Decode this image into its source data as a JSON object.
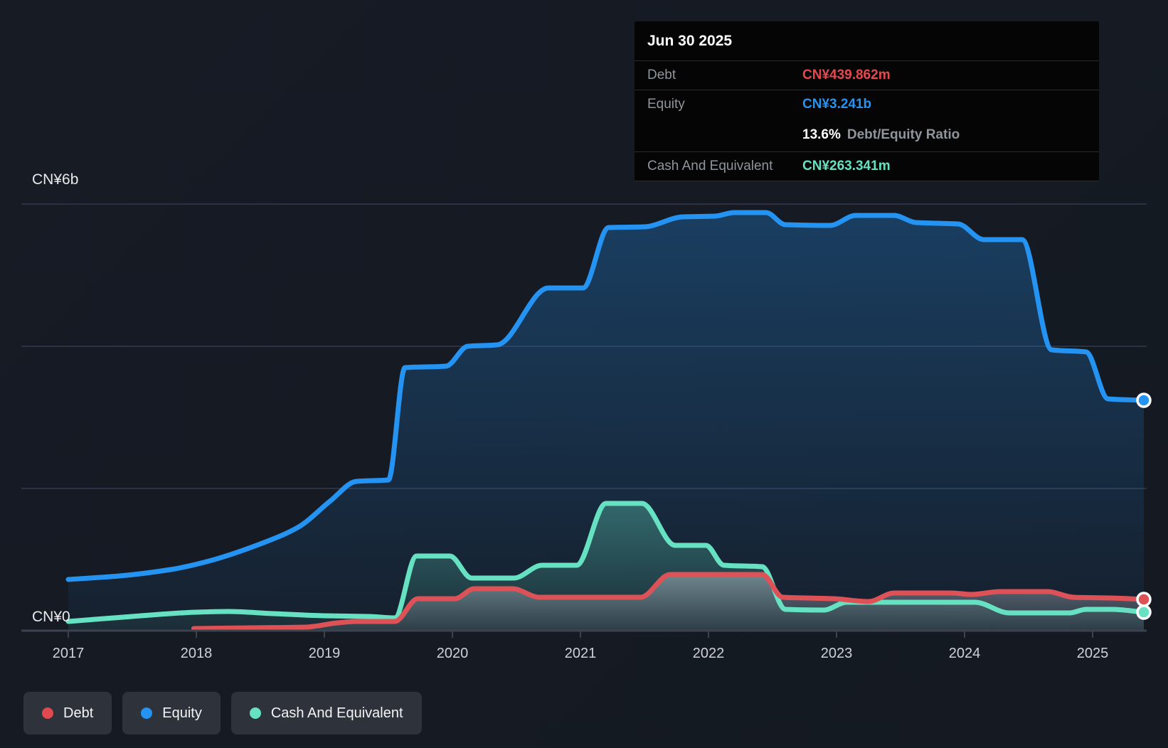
{
  "y_axis": {
    "top_label": "CN¥6b",
    "zero_label": "CN¥0"
  },
  "x_axis": {
    "years": [
      "2017",
      "2018",
      "2019",
      "2020",
      "2021",
      "2022",
      "2023",
      "2024",
      "2025"
    ]
  },
  "tooltip": {
    "title": "Jun 30 2025",
    "rows": [
      {
        "label": "Debt",
        "value": "CN¥439.862m",
        "color": "#e5494e"
      },
      {
        "label": "Equity",
        "value": "CN¥3.241b",
        "color": "#2493f2"
      },
      {
        "label": "",
        "value": "13.6%",
        "suffix": "Debt/Equity Ratio",
        "color": "#ffffff"
      },
      {
        "label": "Cash And Equivalent",
        "value": "CN¥263.341m",
        "color": "#66e2c3"
      }
    ]
  },
  "legend": {
    "items": [
      {
        "label": "Debt",
        "color": "#e0494f"
      },
      {
        "label": "Equity",
        "color": "#2493f2"
      },
      {
        "label": "Cash And Equivalent",
        "color": "#66e2c3"
      }
    ]
  },
  "chart_data": {
    "type": "area",
    "title": "Debt, Equity and Cash history",
    "currency": "CN¥",
    "y_unit": "billions",
    "ylim": [
      0,
      6
    ],
    "gridline_values_b": [
      6,
      4,
      2
    ],
    "x_range": [
      2017,
      2025.4
    ],
    "x_tick_years": [
      2017,
      2018,
      2019,
      2020,
      2021,
      2022,
      2023,
      2024,
      2025
    ],
    "legend_position": "bottom-left",
    "series": [
      {
        "name": "Equity",
        "color": "#2493f2",
        "points": [
          [
            2017.0,
            0.72
          ],
          [
            2017.4,
            0.77
          ],
          [
            2017.8,
            0.86
          ],
          [
            2018.1,
            0.98
          ],
          [
            2018.5,
            1.22
          ],
          [
            2018.8,
            1.46
          ],
          [
            2019.05,
            1.83
          ],
          [
            2019.25,
            2.1
          ],
          [
            2019.5,
            2.12
          ],
          [
            2019.63,
            3.7
          ],
          [
            2019.95,
            3.72
          ],
          [
            2020.12,
            4.0
          ],
          [
            2020.35,
            4.02
          ],
          [
            2020.75,
            4.82
          ],
          [
            2021.02,
            4.82
          ],
          [
            2021.22,
            5.67
          ],
          [
            2021.5,
            5.68
          ],
          [
            2021.8,
            5.82
          ],
          [
            2022.05,
            5.83
          ],
          [
            2022.2,
            5.88
          ],
          [
            2022.45,
            5.88
          ],
          [
            2022.6,
            5.71
          ],
          [
            2022.95,
            5.7
          ],
          [
            2023.15,
            5.84
          ],
          [
            2023.45,
            5.84
          ],
          [
            2023.62,
            5.74
          ],
          [
            2023.95,
            5.72
          ],
          [
            2024.15,
            5.5
          ],
          [
            2024.45,
            5.5
          ],
          [
            2024.68,
            3.95
          ],
          [
            2024.95,
            3.92
          ],
          [
            2025.12,
            3.26
          ],
          [
            2025.4,
            3.24
          ]
        ]
      },
      {
        "name": "Cash And Equivalent",
        "color": "#66e2c3",
        "points": [
          [
            2017.0,
            0.13
          ],
          [
            2017.5,
            0.2
          ],
          [
            2018.0,
            0.26
          ],
          [
            2018.25,
            0.27
          ],
          [
            2018.6,
            0.24
          ],
          [
            2019.0,
            0.21
          ],
          [
            2019.35,
            0.2
          ],
          [
            2019.55,
            0.18
          ],
          [
            2019.72,
            1.05
          ],
          [
            2019.98,
            1.05
          ],
          [
            2020.15,
            0.74
          ],
          [
            2020.48,
            0.74
          ],
          [
            2020.7,
            0.92
          ],
          [
            2020.97,
            0.92
          ],
          [
            2021.2,
            1.79
          ],
          [
            2021.48,
            1.79
          ],
          [
            2021.74,
            1.2
          ],
          [
            2021.98,
            1.2
          ],
          [
            2022.12,
            0.92
          ],
          [
            2022.42,
            0.9
          ],
          [
            2022.6,
            0.3
          ],
          [
            2022.9,
            0.29
          ],
          [
            2023.08,
            0.4
          ],
          [
            2023.6,
            0.4
          ],
          [
            2024.08,
            0.4
          ],
          [
            2024.35,
            0.25
          ],
          [
            2024.82,
            0.25
          ],
          [
            2024.95,
            0.3
          ],
          [
            2025.15,
            0.3
          ],
          [
            2025.4,
            0.26
          ]
        ]
      },
      {
        "name": "Debt",
        "color": "#dd5257",
        "points": [
          [
            2017.98,
            0.03
          ],
          [
            2018.4,
            0.04
          ],
          [
            2018.85,
            0.05
          ],
          [
            2019.1,
            0.11
          ],
          [
            2019.25,
            0.13
          ],
          [
            2019.55,
            0.13
          ],
          [
            2019.73,
            0.45
          ],
          [
            2020.02,
            0.45
          ],
          [
            2020.17,
            0.59
          ],
          [
            2020.47,
            0.59
          ],
          [
            2020.68,
            0.47
          ],
          [
            2021.0,
            0.47
          ],
          [
            2021.47,
            0.47
          ],
          [
            2021.7,
            0.79
          ],
          [
            2022.0,
            0.79
          ],
          [
            2022.42,
            0.79
          ],
          [
            2022.58,
            0.47
          ],
          [
            2022.98,
            0.45
          ],
          [
            2023.25,
            0.41
          ],
          [
            2023.45,
            0.53
          ],
          [
            2023.9,
            0.53
          ],
          [
            2024.05,
            0.51
          ],
          [
            2024.28,
            0.55
          ],
          [
            2024.65,
            0.55
          ],
          [
            2024.85,
            0.47
          ],
          [
            2025.15,
            0.46
          ],
          [
            2025.4,
            0.44
          ]
        ]
      }
    ],
    "end_values": {
      "Debt": "CN¥439.862m",
      "Equity": "CN¥3.241b",
      "Cash And Equivalent": "CN¥263.341m",
      "debt_equity_ratio": "13.6%"
    }
  }
}
